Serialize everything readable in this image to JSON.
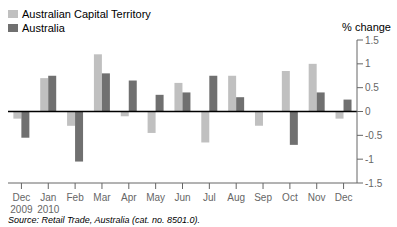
{
  "chart_data": {
    "type": "bar",
    "categories": [
      "Dec",
      "Jan",
      "Feb",
      "Mar",
      "Apr",
      "May",
      "Jun",
      "Jul",
      "Aug",
      "Sep",
      "Oct",
      "Nov",
      "Dec"
    ],
    "sub_labels": [
      "2009",
      "2010",
      null,
      null,
      null,
      null,
      null,
      null,
      null,
      null,
      null,
      null,
      null
    ],
    "series": [
      {
        "name": "Australian Capital Territory",
        "color": "#c0c0c0",
        "values": [
          -0.15,
          0.7,
          -0.3,
          1.2,
          -0.1,
          -0.45,
          0.6,
          -0.65,
          0.75,
          -0.3,
          0.85,
          1.0,
          -0.15
        ]
      },
      {
        "name": "Australia",
        "color": "#707070",
        "values": [
          -0.55,
          0.75,
          -1.05,
          0.8,
          0.65,
          0.35,
          0.4,
          0.75,
          0.3,
          0.0,
          -0.7,
          0.4,
          0.25
        ]
      }
    ],
    "y_label": "% change",
    "ylim": [
      -1.5,
      1.5
    ],
    "yticks": [
      -1.5,
      -1.0,
      -0.5,
      0.0,
      0.5,
      1.0,
      1.5
    ],
    "legend": "upper left",
    "grid": false,
    "source": "Source: Retail Trade, Australia (cat. no. 8501.0)."
  }
}
